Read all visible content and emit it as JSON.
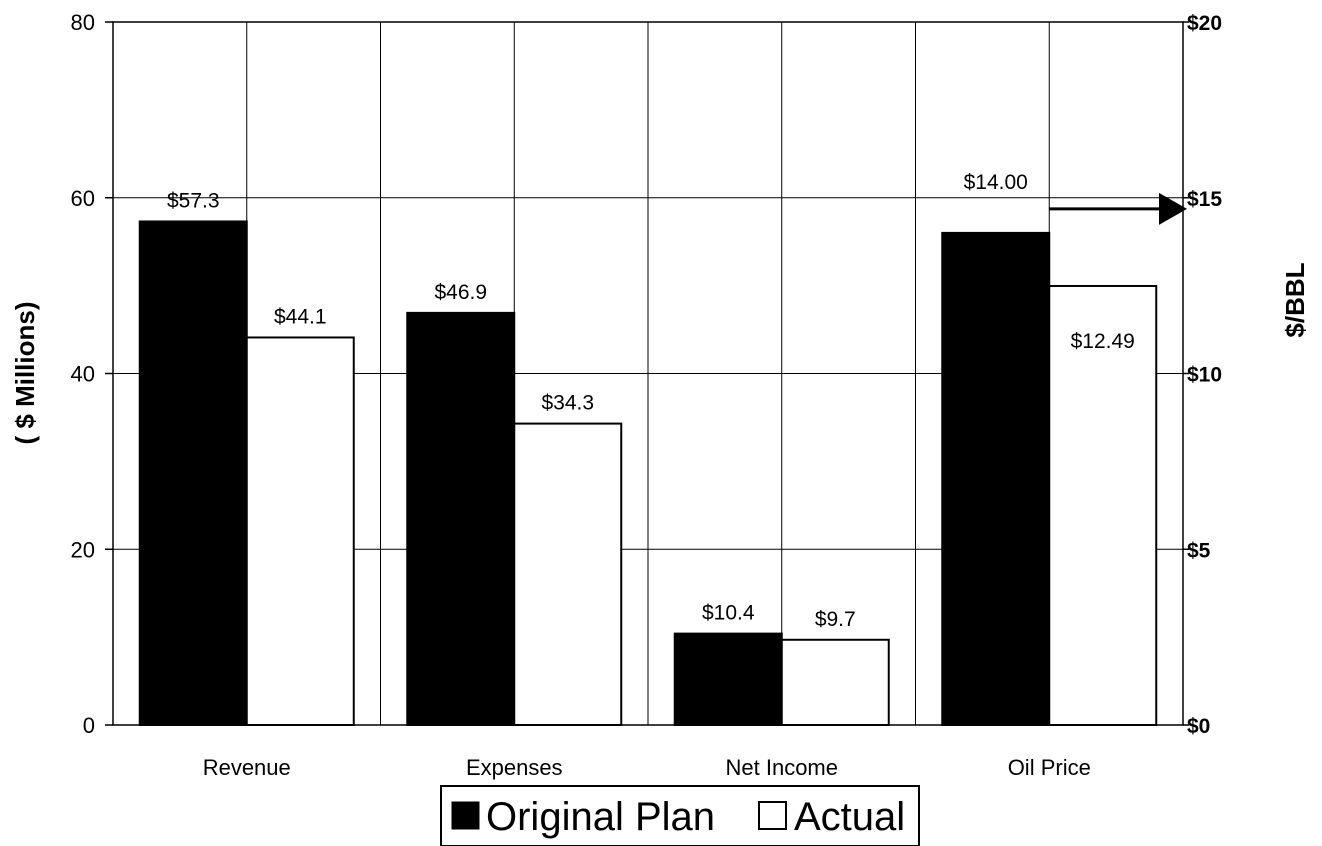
{
  "chart_data": {
    "type": "bar",
    "categories": [
      "Revenue",
      "Expenses",
      "Net Income",
      "Oil Price"
    ],
    "series": [
      {
        "name": "Original Plan",
        "values": [
          57.3,
          46.9,
          10.4,
          14.0
        ],
        "labels": [
          "$57.3",
          "$46.9",
          "$10.4",
          "$14.00"
        ]
      },
      {
        "name": "Actual",
        "values": [
          44.1,
          34.3,
          9.7,
          12.49
        ],
        "labels": [
          "$44.1",
          "$34.3",
          "$9.7",
          "$12.49"
        ]
      }
    ],
    "ylabel": "( $ Millions)",
    "y2label": "$/BBL",
    "ylim": [
      0,
      80
    ],
    "y2lim": [
      0,
      20
    ],
    "yticks": [
      "0",
      "20",
      "40",
      "60",
      "80"
    ],
    "y2ticks": [
      "$0",
      "$5",
      "$10",
      "$15",
      "$20"
    ],
    "secondary_axis_categories": [
      "Oil Price"
    ],
    "grid": true,
    "legend_placement": "bottom-center",
    "colors": {
      "Original Plan": "#000000",
      "Actual": "#ffffff"
    }
  }
}
